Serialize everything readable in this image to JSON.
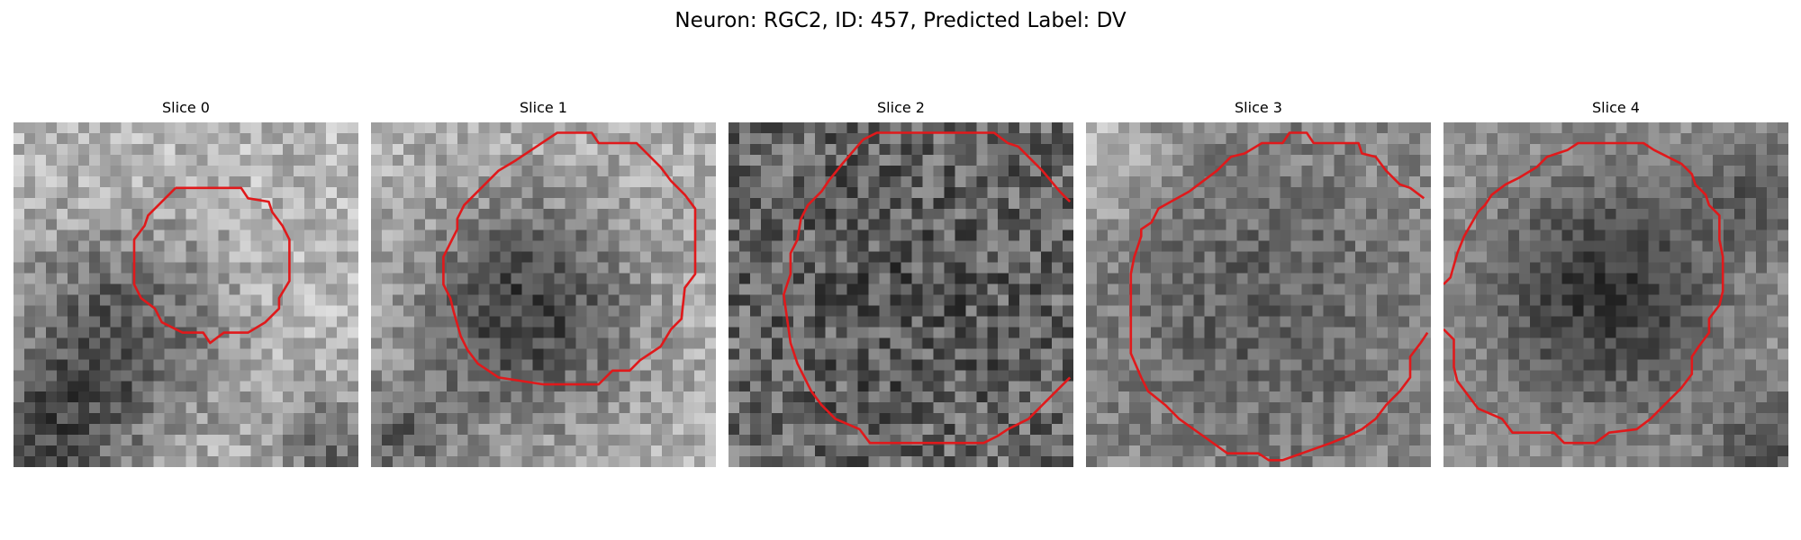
{
  "figure": {
    "title": "Neuron: RGC2, ID: 457, Predicted Label: DV",
    "contour_color": "#e0191b"
  },
  "panels": [
    {
      "title": "Slice 0"
    },
    {
      "title": "Slice 1"
    },
    {
      "title": "Slice 2"
    },
    {
      "title": "Slice 3"
    },
    {
      "title": "Slice 4"
    }
  ]
}
